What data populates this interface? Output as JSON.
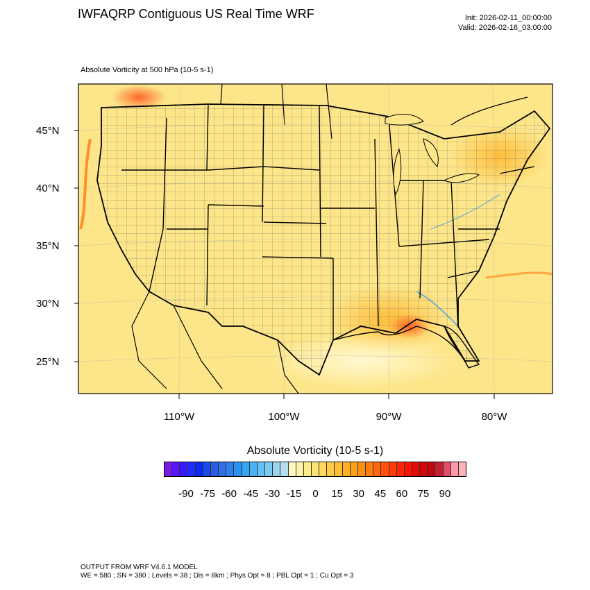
{
  "header": {
    "title": "IWFAQRP Contiguous US Real Time WRF",
    "init": "Init: 2026-02-11_00:00:00",
    "valid": "Valid: 2026-02-16_03:00:00"
  },
  "field": {
    "label": "Absolute Vorticity at 500 hPa   (10-5 s-1)"
  },
  "map": {
    "lat_labels": [
      "45°N",
      "40°N",
      "35°N",
      "30°N",
      "25°N"
    ],
    "lon_labels": [
      "110°W",
      "100°W",
      "90°W",
      "80°W"
    ],
    "background_color": "#fde68a",
    "land_color": "#fdf0a0"
  },
  "colorbar": {
    "title": "Absolute Vorticity  (10-5 s-1)",
    "tick_labels": [
      "-90",
      "-75",
      "-60",
      "-45",
      "-30",
      "-15",
      "0",
      "15",
      "30",
      "45",
      "60",
      "75",
      "90"
    ],
    "colors": [
      "#7a1be8",
      "#5a14ff",
      "#3a18ff",
      "#1f2bff",
      "#0a2cf0",
      "#1a4ae8",
      "#2b5ce6",
      "#3070e6",
      "#2d80f0",
      "#2b92f2",
      "#35a4f4",
      "#4ab3f4",
      "#62c0f4",
      "#7ccaf0",
      "#99d4ee",
      "#b5def0",
      "#fff9c4",
      "#fff3a6",
      "#ffec8a",
      "#ffe372",
      "#ffd85c",
      "#ffcc46",
      "#ffbf32",
      "#ffb122",
      "#ffa21a",
      "#ff9014",
      "#ff7d10",
      "#ff680c",
      "#ff5208",
      "#ff3c06",
      "#ff2804",
      "#f81402",
      "#e80a04",
      "#d20608",
      "#bc0810",
      "#c2202e",
      "#e0506a",
      "#ff98a8",
      "#ffb0b8"
    ]
  },
  "footer": {
    "line1": "OUTPUT FROM WRF V4.6.1 MODEL",
    "line2": "WE = 580 ; SN = 380 ; Levels = 38 ; Dis = 8km ; Phys Opt = 8 ; PBL Opt = 1 ; Cu Opt = 3"
  }
}
